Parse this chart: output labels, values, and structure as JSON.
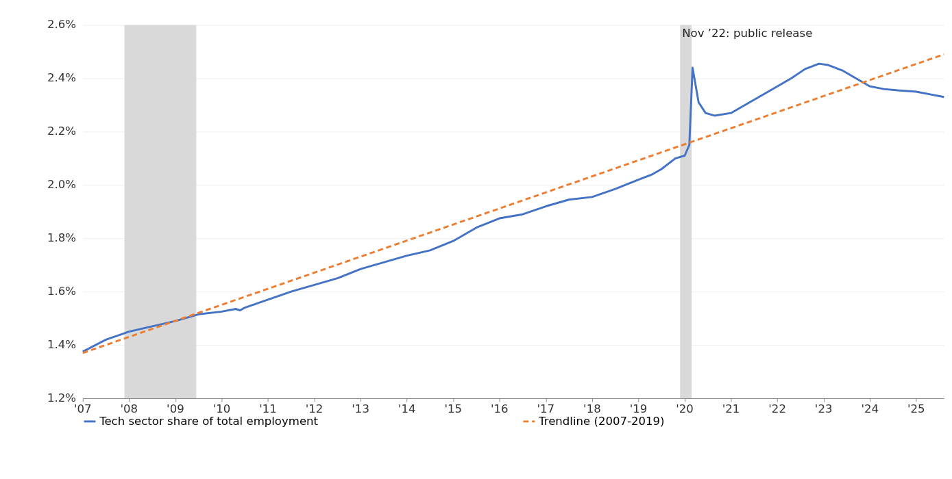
{
  "chart_data": {
    "type": "line",
    "annotations": [
      {
        "text": "Nov ’22: public release",
        "x": 2022.83,
        "y": 2.455
      }
    ],
    "xlim": [
      2007,
      2025.6
    ],
    "xticks": [
      {
        "value": 2007,
        "label": "'07"
      },
      {
        "value": 2008,
        "label": "'08"
      },
      {
        "value": 2009,
        "label": "'09"
      },
      {
        "value": 2010,
        "label": "'10"
      },
      {
        "value": 2011,
        "label": "'11"
      },
      {
        "value": 2012,
        "label": "'12"
      },
      {
        "value": 2013,
        "label": "'13"
      },
      {
        "value": 2014,
        "label": "'14"
      },
      {
        "value": 2015,
        "label": "'15"
      },
      {
        "value": 2016,
        "label": "'16"
      },
      {
        "value": 2017,
        "label": "'17"
      },
      {
        "value": 2018,
        "label": "'18"
      },
      {
        "value": 2019,
        "label": "'19"
      },
      {
        "value": 2020,
        "label": "'20"
      },
      {
        "value": 2021,
        "label": "'21"
      },
      {
        "value": 2022,
        "label": "'22"
      },
      {
        "value": 2023,
        "label": "'23"
      },
      {
        "value": 2024,
        "label": "'24"
      },
      {
        "value": 2025,
        "label": "'25"
      }
    ],
    "ylim": [
      1.2,
      2.6
    ],
    "yticks": [
      {
        "value": 1.2,
        "label": "1.2%"
      },
      {
        "value": 1.4,
        "label": "1.4%"
      },
      {
        "value": 1.6,
        "label": "1.6%"
      },
      {
        "value": 1.8,
        "label": "1.8%"
      },
      {
        "value": 2.0,
        "label": "2.0%"
      },
      {
        "value": 2.2,
        "label": "2.2%"
      },
      {
        "value": 2.4,
        "label": "2.4%"
      },
      {
        "value": 2.6,
        "label": "2.6%"
      }
    ],
    "grid": "y",
    "legend": "bottom",
    "marker": "none",
    "bands": [
      {
        "axis": "x",
        "from": 2007.9,
        "to": 2009.45,
        "color": "#d9d9d9"
      },
      {
        "axis": "x",
        "from": 2019.9,
        "to": 2020.15,
        "color": "#d9d9d9"
      }
    ],
    "series": [
      {
        "name": "Tech sector share of total employment",
        "color": "#4472c4",
        "line_style": "solid",
        "x": [
          2007,
          2007.5,
          2008,
          2008.5,
          2009,
          2009.5,
          2010,
          2010.3,
          2010.4,
          2010.5,
          2011,
          2011.5,
          2012,
          2012.5,
          2013,
          2013.5,
          2014,
          2014.5,
          2015,
          2015.5,
          2016,
          2016.5,
          2017,
          2017.5,
          2018,
          2018.5,
          2019,
          2019.3,
          2019.5,
          2019.8,
          2020,
          2020.1,
          2020.17,
          2020.3,
          2020.45,
          2020.65,
          2021,
          2021.3,
          2021.5,
          2022,
          2022.3,
          2022.6,
          2022.9,
          2023.1,
          2023.4,
          2023.7,
          2024,
          2024.3,
          2024.6,
          2025,
          2025.3,
          2025.6
        ],
        "values": [
          1.375,
          1.42,
          1.45,
          1.47,
          1.49,
          1.515,
          1.525,
          1.535,
          1.53,
          1.54,
          1.57,
          1.6,
          1.625,
          1.65,
          1.685,
          1.71,
          1.735,
          1.755,
          1.79,
          1.84,
          1.875,
          1.89,
          1.92,
          1.945,
          1.955,
          1.985,
          2.02,
          2.04,
          2.06,
          2.1,
          2.11,
          2.15,
          2.44,
          2.31,
          2.27,
          2.26,
          2.27,
          2.3,
          2.32,
          2.37,
          2.4,
          2.435,
          2.455,
          2.45,
          2.43,
          2.4,
          2.37,
          2.36,
          2.355,
          2.35,
          2.34,
          2.33
        ]
      },
      {
        "name": "Trendline (2007-2019)",
        "color": "#ed7d31",
        "line_style": "dashed",
        "x": [
          2007,
          2025.6
        ],
        "values": [
          1.37,
          2.49
        ]
      }
    ]
  }
}
